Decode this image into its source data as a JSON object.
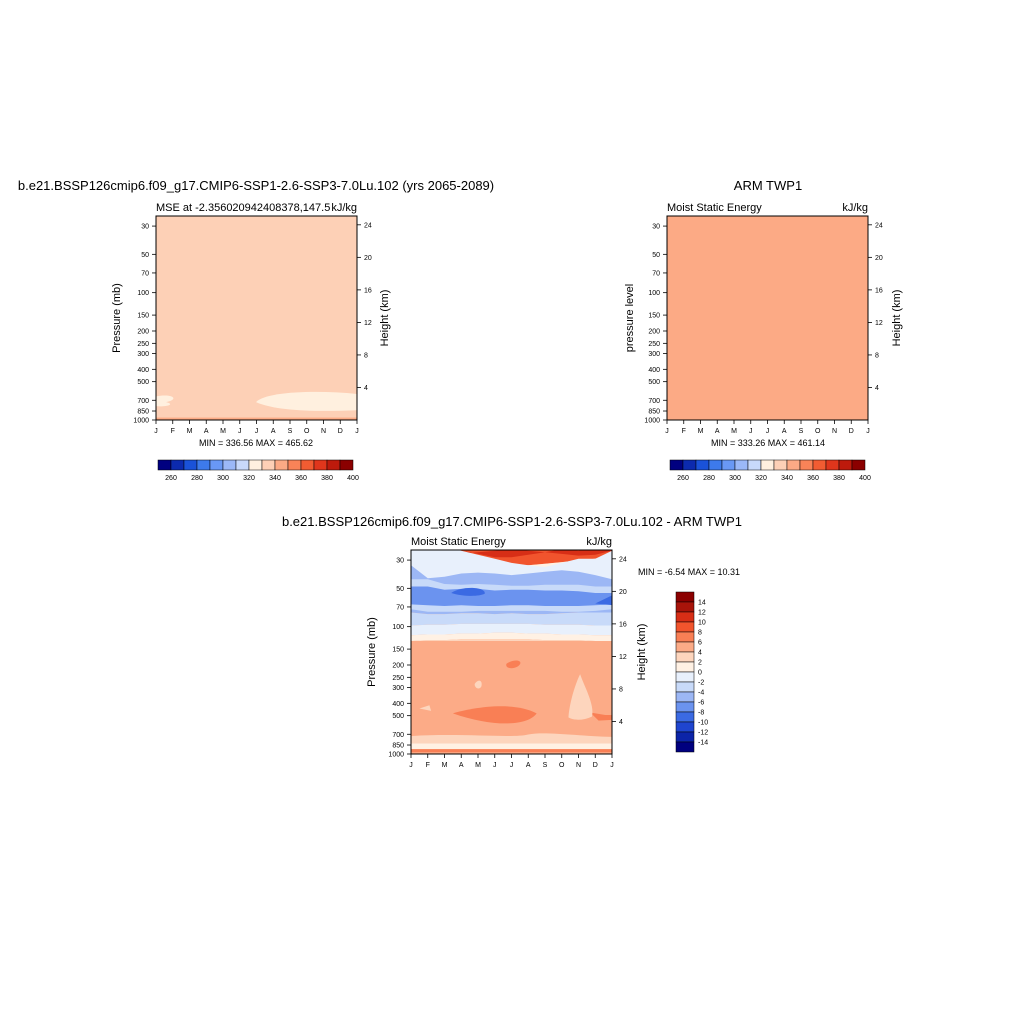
{
  "palette": {
    "mse": [
      "#000080",
      "#0c2aae",
      "#1a52d9",
      "#3d7aeb",
      "#6998f5",
      "#9bb8f8",
      "#c8d9fb",
      "#fff0df",
      "#fdd0b6",
      "#fcaa85",
      "#f98358",
      "#f25c32",
      "#e0361c",
      "#bd1a0c",
      "#8b0000"
    ],
    "diff": [
      "#00007f",
      "#0c24a8",
      "#1f45cf",
      "#3b6ae3",
      "#6b93ef",
      "#9cb7f5",
      "#c8daf9",
      "#e8f0fc",
      "#fff1e4",
      "#fdd5bd",
      "#fcab87",
      "#f97f55",
      "#f1542d",
      "#d72e16",
      "#a8140a",
      "#8b0000"
    ]
  },
  "charts": [
    {
      "id": "model",
      "title": "b.e21.BSSP126cmip6.f09_g17.CMIP6-SSP1-2.6-SSP3-7.0Lu.102 (yrs 2065-2089)",
      "subtitle_left": "MSE at -2.356020942408378,147.5",
      "subtitle_right": "kJ/kg",
      "ylabel": "Pressure (mb)",
      "ylabel_right": "Height (km)",
      "minmax": "MIN = 336.56 MAX = 465.62"
    },
    {
      "id": "obs",
      "title": "ARM TWP1",
      "subtitle_left": "Moist Static Energy",
      "subtitle_right": "kJ/kg",
      "ylabel": "pressure level",
      "ylabel_right": "Height (km)",
      "minmax": "MIN = 333.26 MAX = 461.14"
    },
    {
      "id": "diff",
      "title": "b.e21.BSSP126cmip6.f09_g17.CMIP6-SSP1-2.6-SSP3-7.0Lu.102 - ARM TWP1",
      "subtitle_left": "Moist Static Energy",
      "subtitle_right": "kJ/kg",
      "ylabel": "Pressure (mb)",
      "ylabel_right": "Height (km)",
      "minmax": "MIN =  -6.54 MAX =  10.31"
    }
  ],
  "chart_data": [
    {
      "type": "heatmap",
      "title": "b.e21.BSSP126cmip6.f09_g17.CMIP6-SSP1-2.6-SSP3-7.0Lu.102 (yrs 2065-2089)",
      "x": [
        "J",
        "F",
        "M",
        "A",
        "M",
        "J",
        "J",
        "A",
        "S",
        "O",
        "N",
        "D",
        "J"
      ],
      "y_pressure": [
        30,
        50,
        70,
        100,
        150,
        200,
        250,
        300,
        400,
        500,
        700,
        850,
        1000
      ],
      "y_height": [
        24,
        20,
        16,
        12,
        8,
        4
      ],
      "levels": [
        260,
        270,
        280,
        290,
        300,
        310,
        320,
        330,
        340,
        350,
        360,
        370,
        380,
        390,
        400
      ],
      "colorbar_labels": [
        "260",
        "280",
        "300",
        "320",
        "340",
        "360",
        "380",
        "400"
      ],
      "min": 336.56,
      "max": 465.62,
      "band_bottoms": [
        [
          33,
          33,
          33,
          33,
          33,
          33,
          33,
          33,
          33,
          33,
          33,
          33,
          33
        ],
        [
          27,
          28,
          29,
          30,
          31,
          32,
          34,
          34,
          34,
          33,
          31,
          30,
          28
        ],
        [
          22,
          23,
          24,
          25,
          26,
          27,
          29,
          29,
          29,
          28,
          26,
          24,
          23
        ],
        [
          18,
          19,
          20,
          21,
          22,
          23,
          24,
          24,
          24,
          23,
          22,
          20,
          19
        ],
        [
          15,
          16,
          17,
          18,
          19,
          20,
          21,
          21,
          21,
          20,
          19,
          17,
          16
        ],
        [
          12,
          13,
          14,
          15,
          16,
          17,
          18,
          18,
          18,
          17,
          16,
          14,
          13
        ],
        [
          9,
          10,
          10,
          11,
          12,
          13,
          13,
          13,
          13,
          13,
          12,
          11,
          10
        ],
        [
          7,
          7,
          7,
          7,
          7,
          7,
          7,
          7,
          7,
          7,
          7,
          7,
          7
        ],
        [
          -7,
          -7,
          -7,
          -6,
          -5,
          -5,
          -6,
          -7,
          -7,
          -8,
          -8,
          -7,
          -6
        ],
        [
          -34,
          -34,
          -33,
          -33,
          -33,
          -33,
          -34,
          -35,
          -36,
          -36,
          -36,
          -35,
          -34
        ],
        [
          -200,
          -200,
          -200,
          -200,
          -200,
          -200,
          -200,
          -200,
          -200,
          -200,
          -200,
          -200,
          -200
        ]
      ],
      "band_levels": [
        400,
        390,
        380,
        370,
        360,
        350,
        340,
        330,
        320,
        310,
        300
      ]
    },
    {
      "type": "heatmap",
      "title": "ARM TWP1",
      "x": [
        "J",
        "F",
        "M",
        "A",
        "M",
        "J",
        "J",
        "A",
        "S",
        "O",
        "N",
        "D",
        "J"
      ],
      "y_pressure": [
        30,
        50,
        70,
        100,
        150,
        200,
        250,
        300,
        400,
        500,
        700,
        850,
        1000
      ],
      "y_height": [
        24,
        20,
        16,
        12,
        8,
        4
      ],
      "levels": [
        260,
        270,
        280,
        290,
        300,
        310,
        320,
        330,
        340,
        350,
        360,
        370,
        380,
        390,
        400
      ],
      "colorbar_labels": [
        "260",
        "280",
        "300",
        "320",
        "340",
        "360",
        "380",
        "400"
      ],
      "min": 333.26,
      "max": 461.14
    },
    {
      "type": "heatmap",
      "title": "b.e21.BSSP126cmip6.f09_g17.CMIP6-SSP1-2.6-SSP3-7.0Lu.102 - ARM TWP1",
      "x": [
        "J",
        "F",
        "M",
        "A",
        "M",
        "J",
        "J",
        "A",
        "S",
        "O",
        "N",
        "D",
        "J"
      ],
      "y_pressure": [
        30,
        50,
        70,
        100,
        150,
        200,
        250,
        300,
        400,
        500,
        700,
        850,
        1000
      ],
      "y_height": [
        24,
        20,
        16,
        12,
        8,
        4
      ],
      "levels": [
        -14,
        -12,
        -10,
        -8,
        -6,
        -4,
        -2,
        0,
        2,
        4,
        6,
        8,
        10,
        12,
        14
      ],
      "colorbar_labels": [
        "14",
        "12",
        "10",
        "8",
        "6",
        "4",
        "2",
        "0",
        "-2",
        "-4",
        "-6",
        "-8",
        "-10",
        "-12",
        "-14"
      ],
      "min": -6.54,
      "max": 10.31
    }
  ]
}
